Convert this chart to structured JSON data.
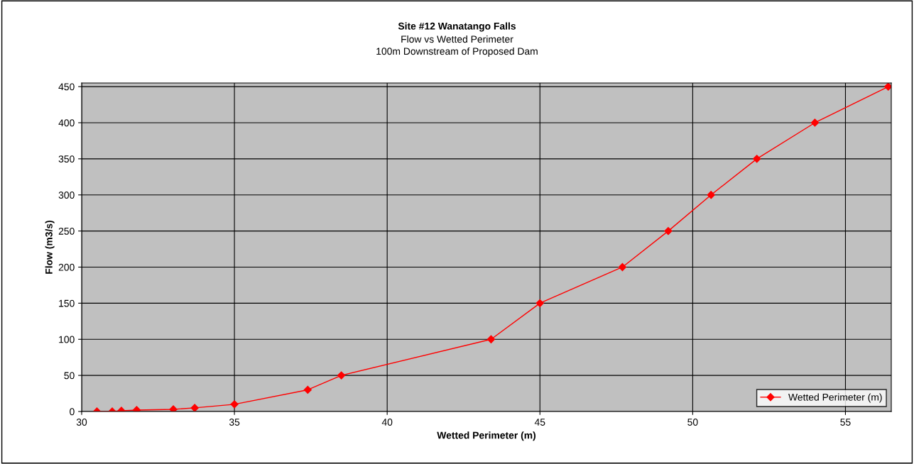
{
  "chart_data": {
    "type": "line",
    "title": "Site #12 Wanatango Falls",
    "subtitle": "Flow vs Wetted Perimeter\n100m Downstream of Proposed Dam",
    "xlabel": "Wetted Perimeter (m)",
    "ylabel": "Flow (m3/s)",
    "x": [
      30.5,
      31.0,
      31.3,
      31.8,
      33.0,
      33.7,
      35.0,
      37.4,
      38.5,
      43.4,
      45.0,
      47.7,
      49.2,
      50.6,
      52.1,
      54.0,
      56.4
    ],
    "series": [
      {
        "name": "Wetted Perimeter (m)",
        "color": "#ff0000",
        "values": [
          0,
          0,
          1,
          2,
          3,
          5,
          10,
          30,
          50,
          100,
          150,
          200,
          250,
          300,
          350,
          400,
          450
        ]
      }
    ],
    "xlim": [
      30,
      56.5
    ],
    "xticks": [
      30,
      35,
      40,
      45,
      50,
      55
    ],
    "ylim": [
      0,
      455
    ],
    "yticks": [
      0,
      50,
      100,
      150,
      200,
      250,
      300,
      350,
      400,
      450
    ],
    "grid": true,
    "legend": "bottom right",
    "marker": "diamond",
    "line_style": "solid"
  }
}
